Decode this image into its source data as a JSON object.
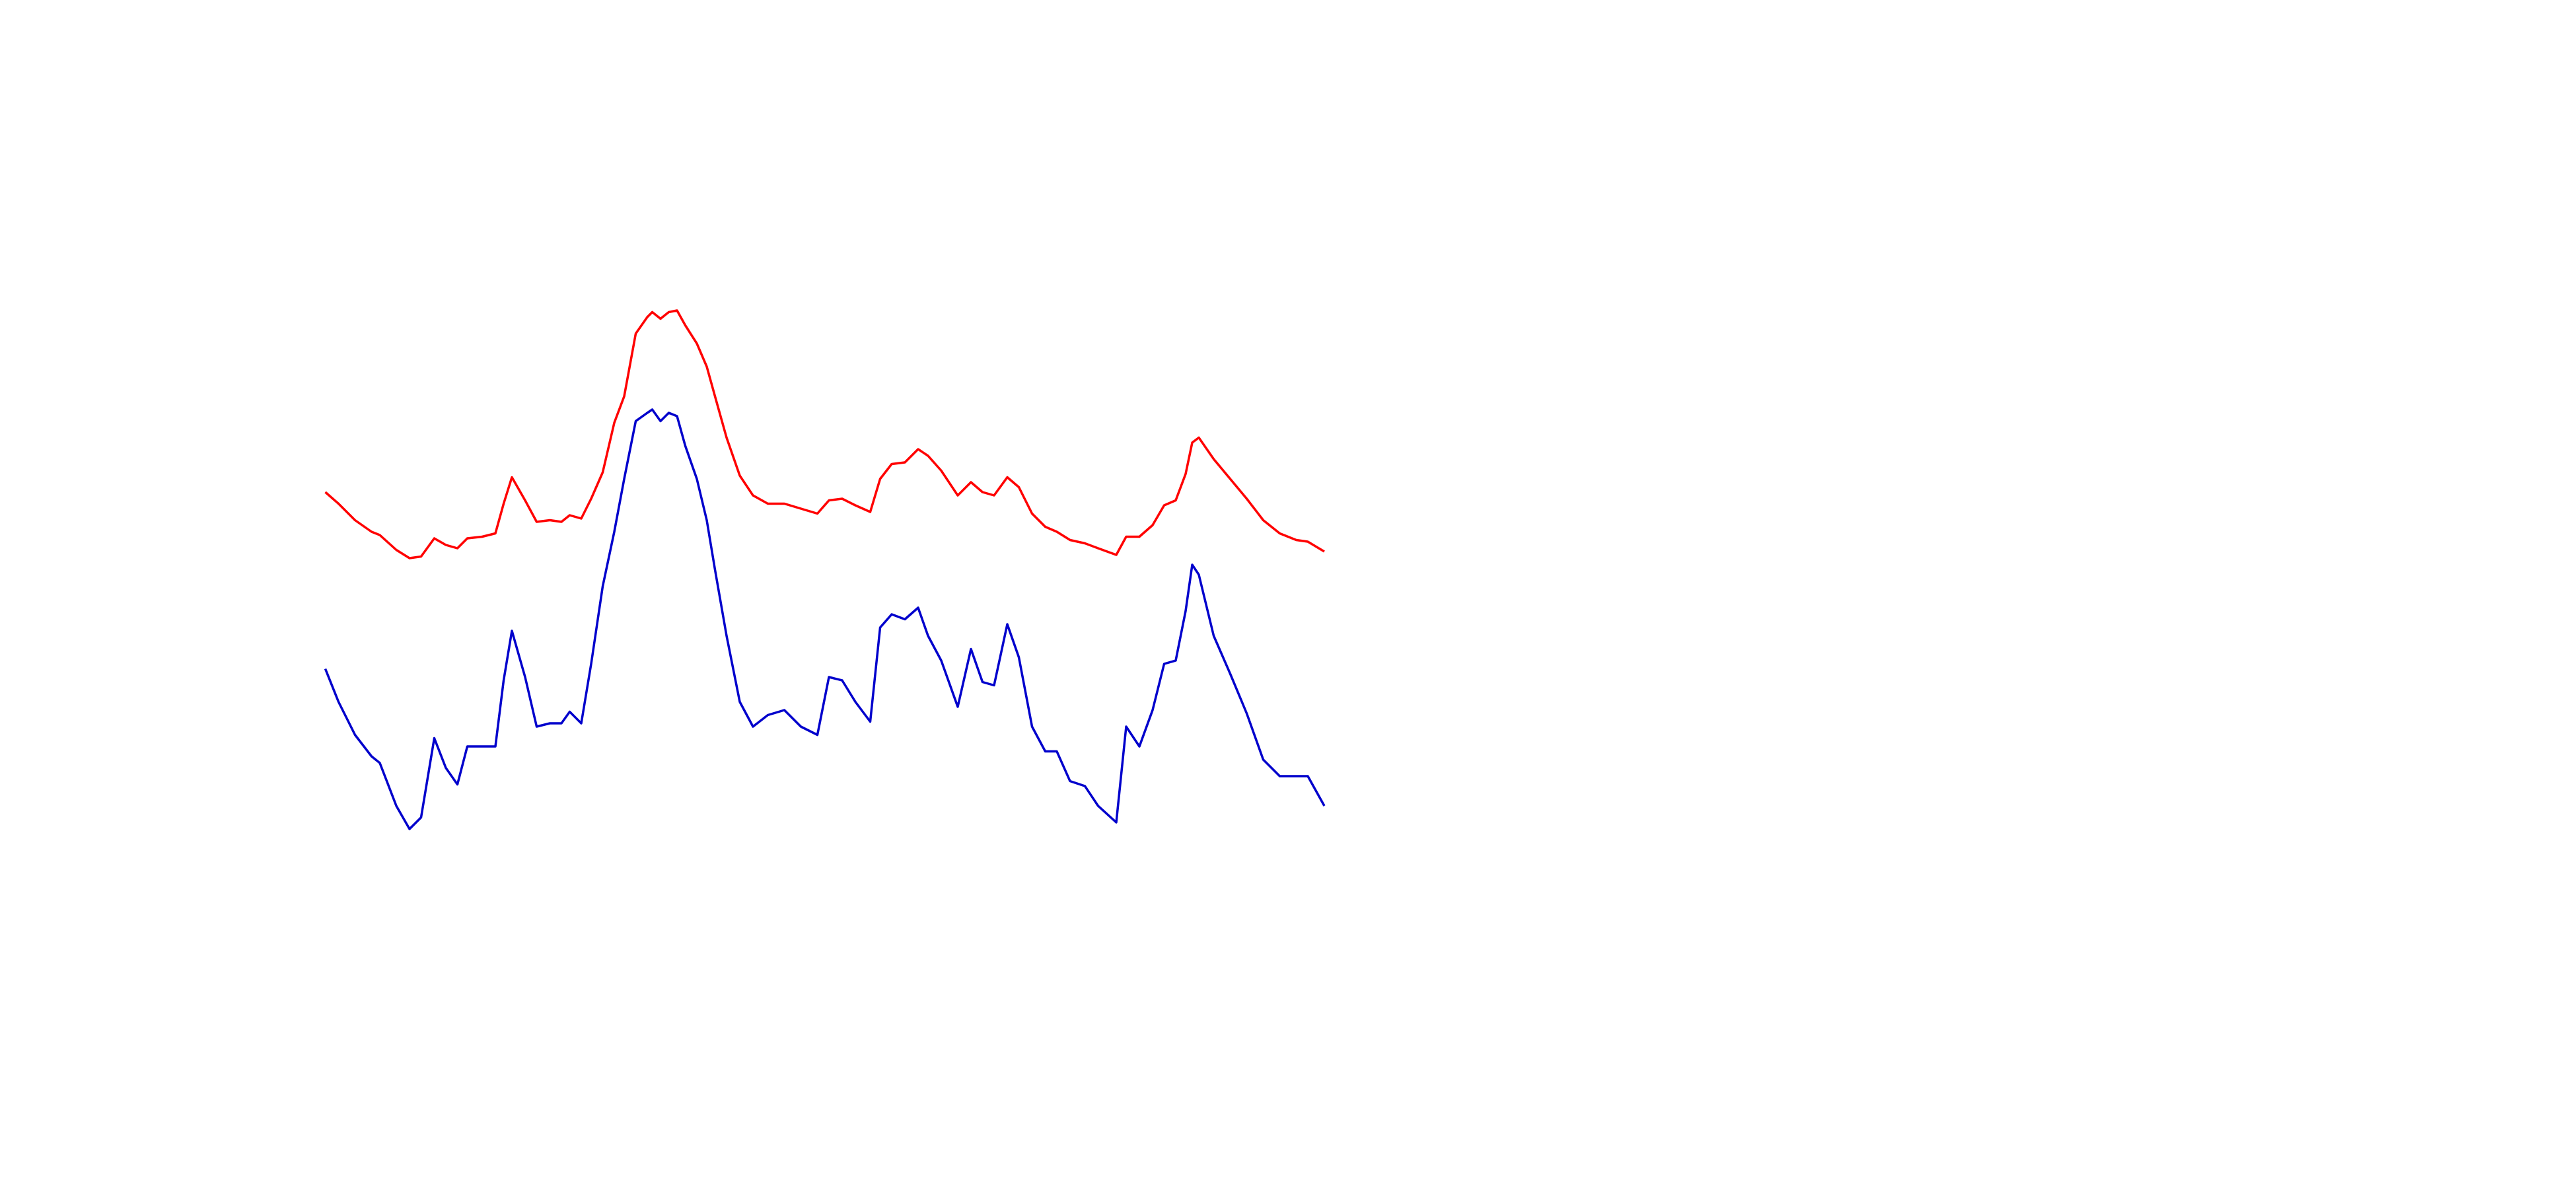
{
  "chart_data": {
    "type": "line",
    "x": [
      0,
      8,
      18,
      28,
      33,
      43,
      51,
      58,
      66,
      73,
      80,
      86,
      95,
      103,
      108,
      113,
      121,
      128,
      136,
      143,
      148,
      155,
      161,
      168,
      175,
      181,
      188,
      195,
      198,
      203,
      208,
      213,
      218,
      225,
      231,
      236,
      243,
      251,
      259,
      268,
      278,
      288,
      298,
      305,
      313,
      321,
      330,
      336,
      343,
      351,
      359,
      365,
      373,
      383,
      391,
      398,
      405,
      413,
      420,
      428,
      436,
      443,
      451,
      460,
      468,
      479,
      485,
      493,
      501,
      508,
      515,
      521,
      525,
      529,
      538,
      548,
      558,
      568,
      578,
      588,
      595,
      605
    ],
    "series": [
      {
        "color": "#ff0000",
        "values": [
          302,
          295,
          285,
          278,
          276,
          267,
          262,
          263,
          274,
          270,
          268,
          274,
          275,
          277,
          295,
          311,
          297,
          284,
          285,
          284,
          288,
          286,
          298,
          314,
          344,
          360,
          398,
          408,
          411,
          407,
          411,
          412,
          403,
          392,
          378,
          360,
          335,
          312,
          300,
          295,
          295,
          292,
          289,
          297,
          298,
          294,
          290,
          310,
          319,
          320,
          328,
          324,
          315,
          300,
          308,
          302,
          300,
          311,
          305,
          289,
          281,
          278,
          273,
          271,
          268,
          264,
          275,
          275,
          282,
          294,
          297,
          313,
          332,
          335,
          322,
          310,
          298,
          285,
          277,
          273,
          272,
          266
        ]
      },
      {
        "color": "#0000cc",
        "values": [
          195,
          175,
          155,
          142,
          138,
          112,
          98,
          105,
          153,
          135,
          125,
          148,
          148,
          148,
          188,
          218,
          190,
          160,
          162,
          162,
          169,
          162,
          198,
          245,
          278,
          310,
          345,
          350,
          352,
          345,
          350,
          348,
          330,
          310,
          285,
          255,
          215,
          175,
          160,
          167,
          170,
          160,
          155,
          190,
          188,
          175,
          163,
          220,
          228,
          225,
          232,
          215,
          200,
          172,
          207,
          187,
          185,
          222,
          202,
          160,
          145,
          145,
          127,
          124,
          112,
          102,
          160,
          148,
          170,
          198,
          200,
          230,
          258,
          252,
          215,
          192,
          168,
          140,
          130,
          130,
          130,
          112
        ]
      }
    ],
    "xlim": [
      0,
      605
    ],
    "ylim": [
      0,
      450
    ]
  }
}
